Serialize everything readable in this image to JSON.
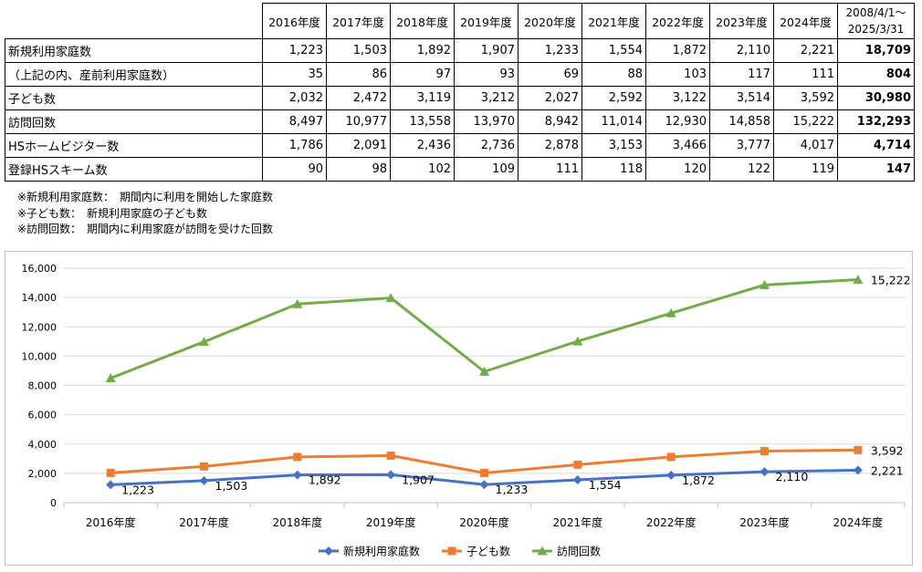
{
  "table": {
    "columns": [
      "2016年度",
      "2017年度",
      "2018年度",
      "2019年度",
      "2020年度",
      "2021年度",
      "2022年度",
      "2023年度",
      "2024年度"
    ],
    "total_header": [
      "2008/4/1～",
      "2025/3/31"
    ],
    "rows": [
      {
        "label": "新規利用家庭数",
        "values": [
          "1,223",
          "1,503",
          "1,892",
          "1,907",
          "1,233",
          "1,554",
          "1,872",
          "2,110",
          "2,221"
        ],
        "total": "18,709"
      },
      {
        "label": "（上記の内、産前利用家庭数）",
        "values": [
          "35",
          "86",
          "97",
          "93",
          "69",
          "88",
          "103",
          "117",
          "111"
        ],
        "total": "804"
      },
      {
        "label": "子ども数",
        "values": [
          "2,032",
          "2,472",
          "3,119",
          "3,212",
          "2,027",
          "2,592",
          "3,122",
          "3,514",
          "3,592"
        ],
        "total": "30,980"
      },
      {
        "label": "訪問回数",
        "values": [
          "8,497",
          "10,977",
          "13,558",
          "13,970",
          "8,942",
          "11,014",
          "12,930",
          "14,858",
          "15,222"
        ],
        "total": "132,293"
      },
      {
        "label": "HSホームビジター数",
        "values": [
          "1,786",
          "2,091",
          "2,436",
          "2,736",
          "2,878",
          "3,153",
          "3,466",
          "3,777",
          "4,017"
        ],
        "total": "4,714"
      },
      {
        "label": "登録HSスキーム数",
        "values": [
          "90",
          "98",
          "102",
          "109",
          "111",
          "118",
          "120",
          "122",
          "119"
        ],
        "total": "147"
      }
    ]
  },
  "notes": [
    "※新規利用家庭数：　期間内に利用を開始した家庭数",
    "※子ども数：　新規利用家庭の子ども数",
    "※訪問回数：　期間内に利用家庭が訪問を受けた回数"
  ],
  "chart_data": {
    "type": "line",
    "categories": [
      "2016年度",
      "2017年度",
      "2018年度",
      "2019年度",
      "2020年度",
      "2021年度",
      "2022年度",
      "2023年度",
      "2024年度"
    ],
    "ylim": [
      0,
      16000
    ],
    "yticks": [
      0,
      2000,
      4000,
      6000,
      8000,
      10000,
      12000,
      14000,
      16000
    ],
    "ytick_labels": [
      "0",
      "2,000",
      "4,000",
      "6,000",
      "8,000",
      "10,000",
      "12,000",
      "14,000",
      "16,000"
    ],
    "grid": "horizontal",
    "legend": "bottom",
    "series": [
      {
        "name": "新規利用家庭数",
        "color": "#4472C4",
        "marker": "diamond",
        "values": [
          1223,
          1503,
          1892,
          1907,
          1233,
          1554,
          1872,
          2110,
          2221
        ],
        "labels": [
          "1,223",
          "1,503",
          "1,892",
          "1,907",
          "1,233",
          "1,554",
          "1,872",
          "2,110",
          "2,221"
        ]
      },
      {
        "name": "子ども数",
        "color": "#ED7D31",
        "marker": "square",
        "values": [
          2032,
          2472,
          3119,
          3212,
          2027,
          2592,
          3122,
          3514,
          3592
        ],
        "labels": [
          "",
          "",
          "",
          "",
          "",
          "",
          "",
          "",
          "3,592"
        ]
      },
      {
        "name": "訪問回数",
        "color": "#70AD47",
        "marker": "triangle",
        "values": [
          8497,
          10977,
          13558,
          13970,
          8942,
          11014,
          12930,
          14858,
          15222
        ],
        "labels": [
          "",
          "",
          "",
          "",
          "",
          "",
          "",
          "",
          "15,222"
        ]
      }
    ]
  }
}
